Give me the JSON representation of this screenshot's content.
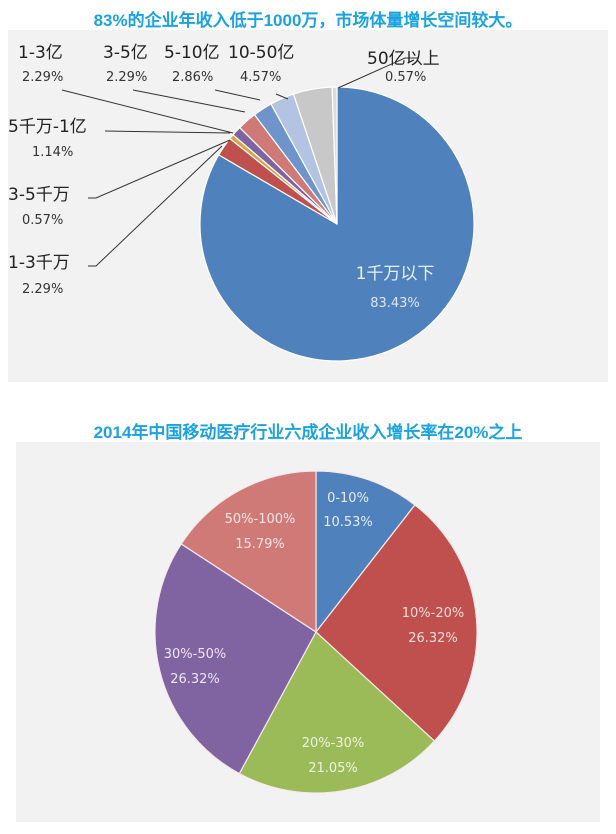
{
  "chart_data": [
    {
      "type": "pie",
      "title": "83%的企业年收入低于1000万，市场体量增长空间较大。",
      "start_angle_deg": 0,
      "direction": "clockwise",
      "slices": [
        {
          "label": "1千万以下",
          "value": 83.43,
          "display": "83.43%",
          "color": "#4f81bd"
        },
        {
          "label": "1-3千万",
          "value": 2.29,
          "display": "2.29%",
          "color": "#c0504d"
        },
        {
          "label": "3-5千万",
          "value": 0.57,
          "display": "0.57%",
          "color": "#d9a441"
        },
        {
          "label": "5千万-1亿",
          "value": 1.14,
          "display": "1.14%",
          "color": "#8064a2"
        },
        {
          "label": "1-3亿",
          "value": 2.29,
          "display": "2.29%",
          "color": "#d07a78"
        },
        {
          "label": "3-5亿",
          "value": 2.29,
          "display": "2.29%",
          "color": "#6f94cb"
        },
        {
          "label": "5-10亿",
          "value": 2.86,
          "display": "2.86%",
          "color": "#b3c4e2"
        },
        {
          "label": "10-50亿",
          "value": 4.57,
          "display": "4.57%",
          "color": "#c8c8c8"
        },
        {
          "label": "50亿以上",
          "value": 0.57,
          "display": "0.57%",
          "color": "#dcdcdc"
        }
      ]
    },
    {
      "type": "pie",
      "title": "2014年中国移动医疗行业六成企业收入增长率在20%之上",
      "start_angle_deg": 0,
      "direction": "clockwise",
      "slices": [
        {
          "label": "0-10%",
          "value": 10.53,
          "display": "10.53%",
          "color": "#4f81bd"
        },
        {
          "label": "10%-20%",
          "value": 26.32,
          "display": "26.32%",
          "color": "#c0504d"
        },
        {
          "label": "20%-30%",
          "value": 21.05,
          "display": "21.05%",
          "color": "#9bbb59"
        },
        {
          "label": "30%-50%",
          "value": 26.32,
          "display": "26.32%",
          "color": "#8064a2"
        },
        {
          "label": "50%-100%",
          "value": 15.79,
          "display": "15.79%",
          "color": "#d07a78"
        }
      ]
    }
  ],
  "chart1": {
    "title": "83%的企业年收入低于1000万，市场体量增长空间较大。",
    "labels": {
      "s0": {
        "name": "1千万以下",
        "pct": "83.43%"
      },
      "s1": {
        "name": "1-3千万",
        "pct": "2.29%"
      },
      "s2": {
        "name": "3-5千万",
        "pct": "0.57%"
      },
      "s3": {
        "name": "5千万-1亿",
        "pct": "1.14%"
      },
      "s4": {
        "name": "1-3亿",
        "pct": "2.29%"
      },
      "s5": {
        "name": "3-5亿",
        "pct": "2.29%"
      },
      "s6": {
        "name": "5-10亿",
        "pct": "2.86%"
      },
      "s7": {
        "name": "10-50亿",
        "pct": "4.57%"
      },
      "s8": {
        "name": "50亿以上",
        "pct": "0.57%"
      }
    }
  },
  "chart2": {
    "title": "2014年中国移动医疗行业六成企业收入增长率在20%之上",
    "labels": {
      "s0": {
        "name": "0-10%",
        "pct": "10.53%"
      },
      "s1": {
        "name": "10%-20%",
        "pct": "26.32%"
      },
      "s2": {
        "name": "20%-30%",
        "pct": "21.05%"
      },
      "s3": {
        "name": "30%-50%",
        "pct": "26.32%"
      },
      "s4": {
        "name": "50%-100%",
        "pct": "15.79%"
      }
    }
  }
}
